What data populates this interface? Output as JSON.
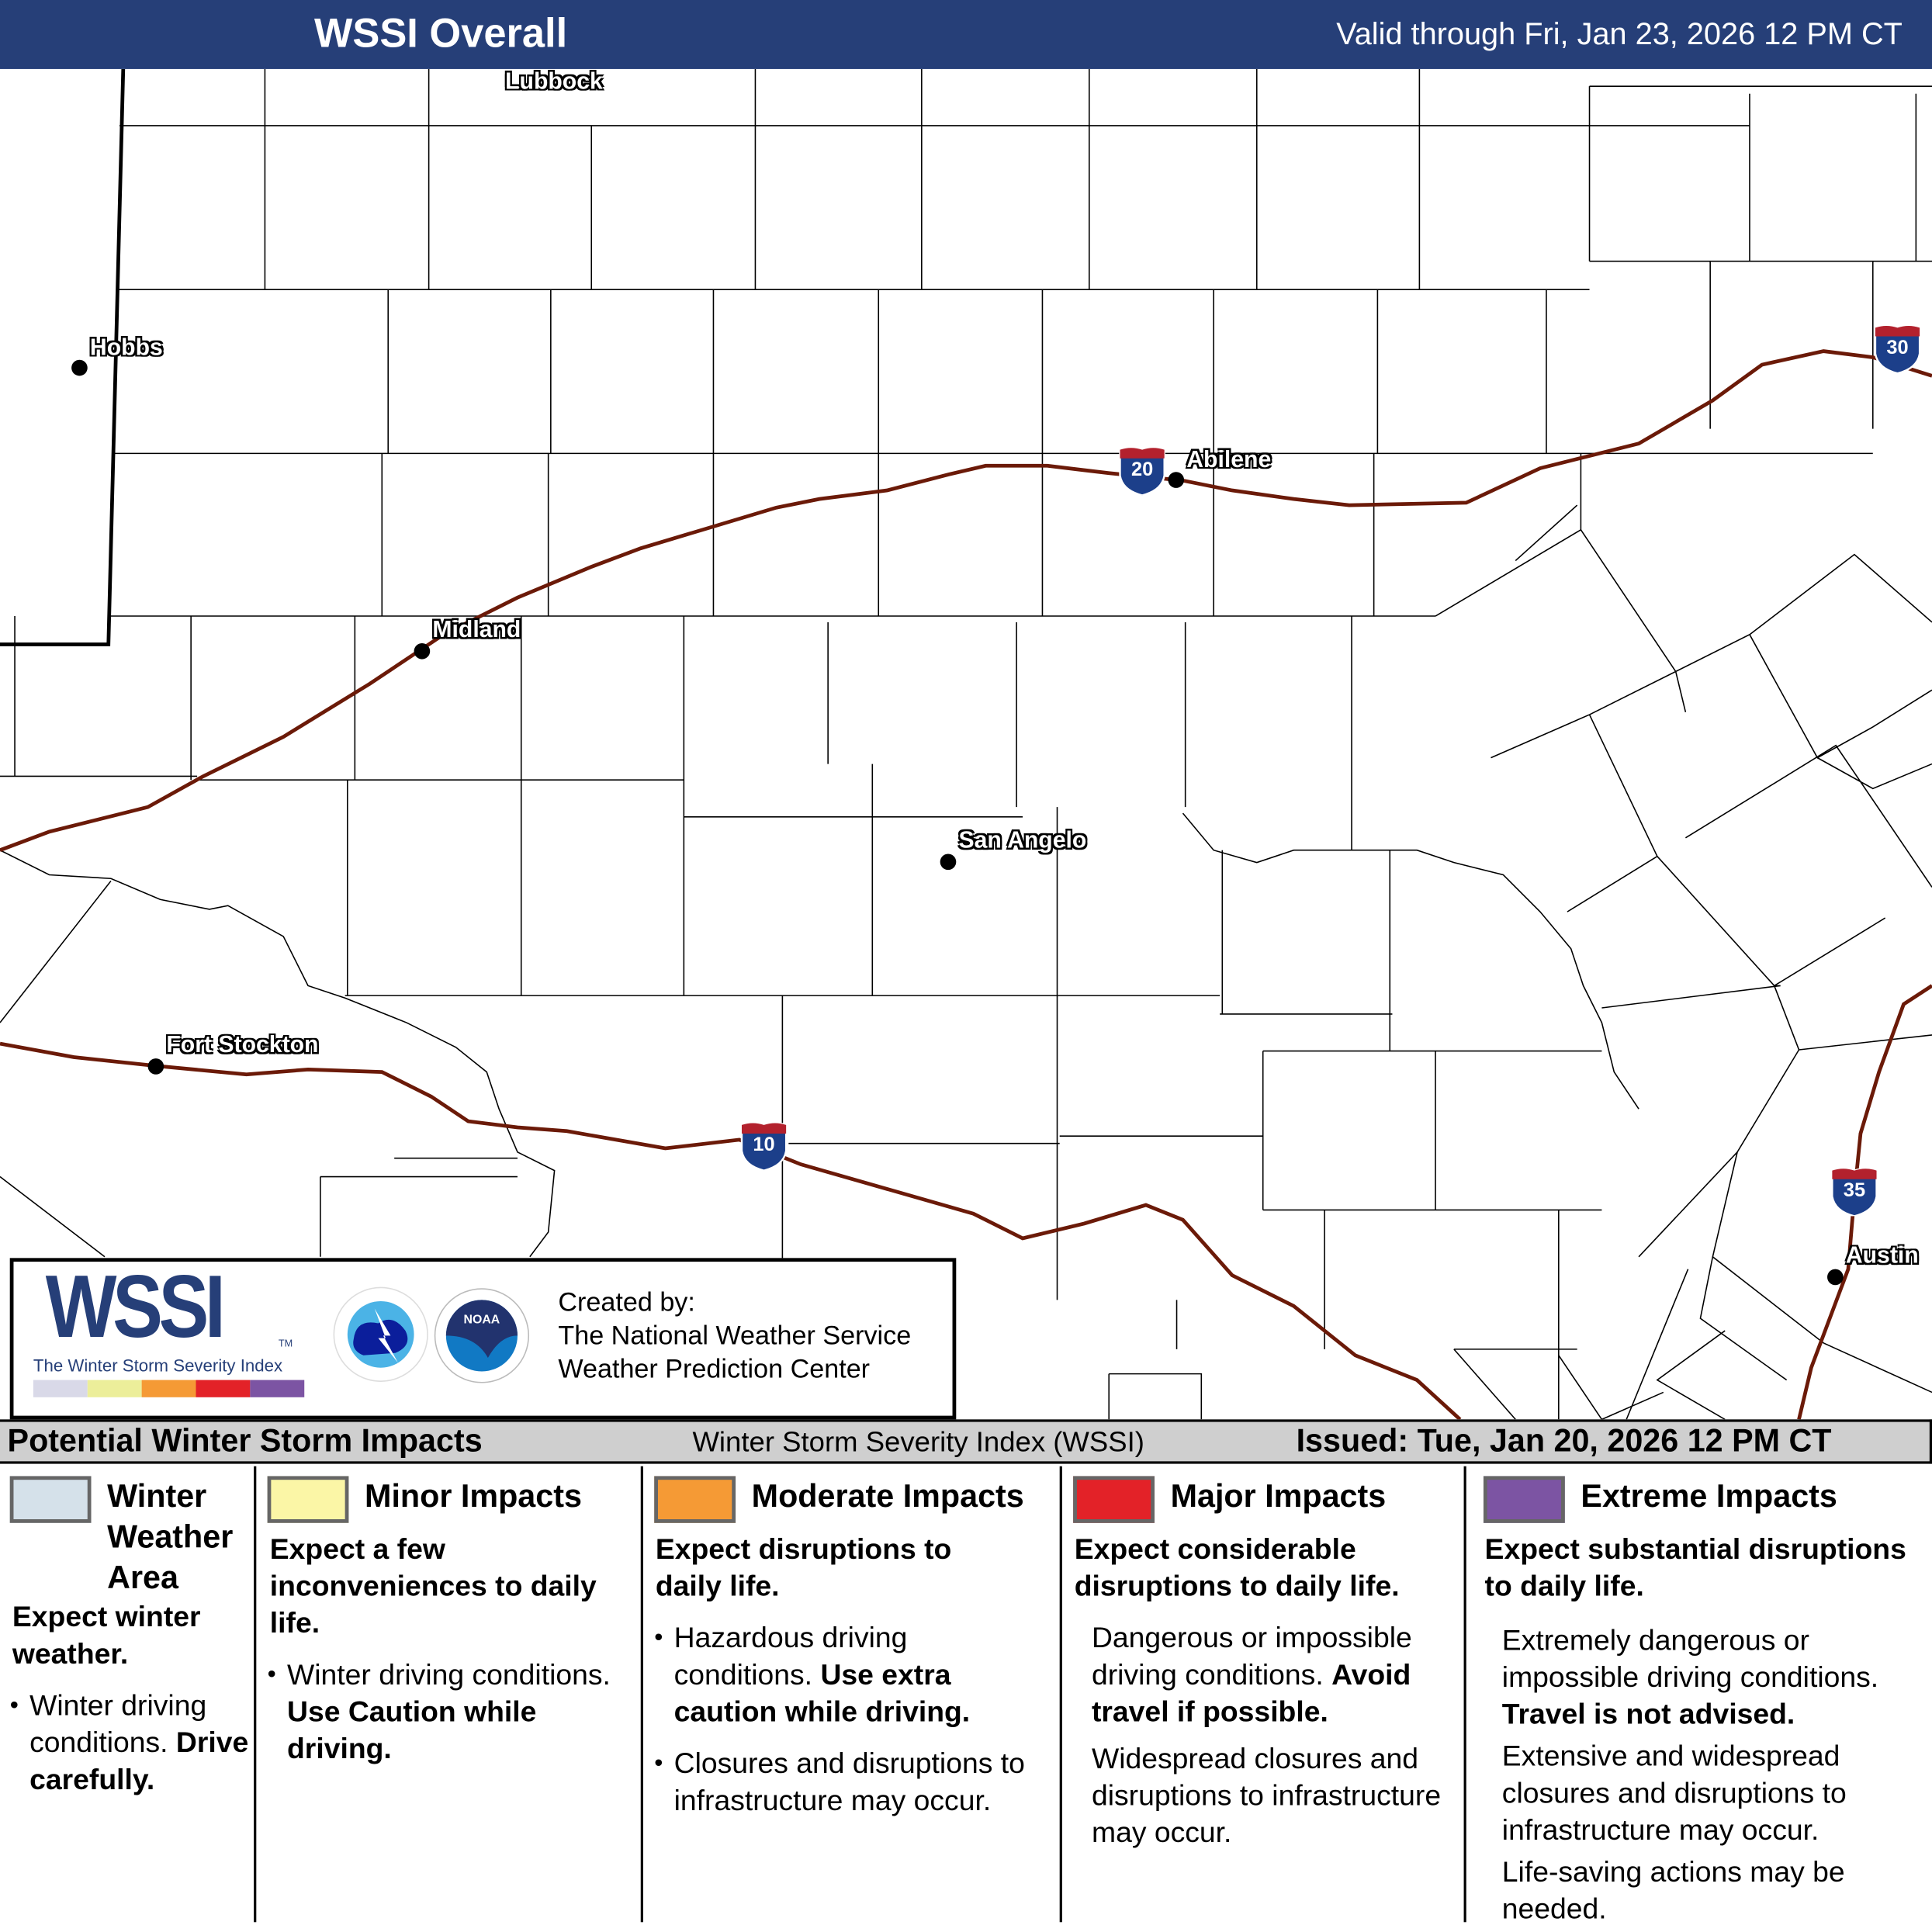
{
  "header": {
    "title": "WSSI Overall",
    "valid": "Valid through Fri, Jan 23, 2026 12 PM CT"
  },
  "map": {
    "cities": [
      "Lubbock",
      "Hobbs",
      "Abilene",
      "Midland",
      "San Angelo",
      "Fort Stockton",
      "Austin"
    ],
    "interstates": [
      "20",
      "30",
      "10",
      "35"
    ],
    "colors": {
      "interstate": "#6b1a08",
      "shield_blue": "#1c3f8a",
      "shield_red": "#b3212d",
      "county_line": "#000000"
    }
  },
  "logo": {
    "wssi": "WSSI",
    "tm": "TM",
    "subtitle": "The Winter Storm Severity Index",
    "nws_text": "NATIONAL WEATHER SERVICE",
    "noaa_text": "NOAA",
    "created_by": "Created by:",
    "org1": "The National Weather Service",
    "org2": "Weather Prediction Center",
    "bar_colors": [
      "#d9d9e8",
      "#ecee9a",
      "#f59a35",
      "#e32228",
      "#7c54a3"
    ]
  },
  "strip": {
    "left": "Potential Winter Storm Impacts",
    "center": "Winter Storm Severity Index (WSSI)",
    "right": "Issued: Tue, Jan 20, 2026 12 PM CT"
  },
  "legend": [
    {
      "title": "Winter Weather Area",
      "color": "#d5e1ea",
      "expect": "Expect winter weather.",
      "bullet1a": "Winter driving conditions.",
      "bullet1b": "Drive carefully."
    },
    {
      "title": "Minor Impacts",
      "color": "#fbf6a6",
      "expect": "Expect a few inconveniences to daily life.",
      "bullet1a": "Winter driving conditions.",
      "bullet1b": "Use Caution while driving."
    },
    {
      "title": "Moderate Impacts",
      "color": "#f59a35",
      "expect": "Expect disruptions to daily life.",
      "bullet1a": "Hazardous driving conditions.",
      "bullet1b": "Use extra caution while driving.",
      "bullet2": "Closures and disruptions to infrastructure may occur."
    },
    {
      "title": "Major Impacts",
      "color": "#e32228",
      "expect": "Expect considerable disruptions to daily life.",
      "p1a": "Dangerous or impossible driving conditions.",
      "p1b": "Avoid travel if possible.",
      "p2": "Widespread closures and disruptions to infrastructure may occur."
    },
    {
      "title": "Extreme Impacts",
      "color": "#7c54a3",
      "expect": "Expect substantial disruptions to daily life.",
      "p1a": "Extremely dangerous or impossible driving conditions.",
      "p1b": "Travel is not advised.",
      "p2": "Extensive and widespread closures and disruptions to infrastructure may occur.",
      "p3": "Life-saving actions may be needed."
    }
  ]
}
